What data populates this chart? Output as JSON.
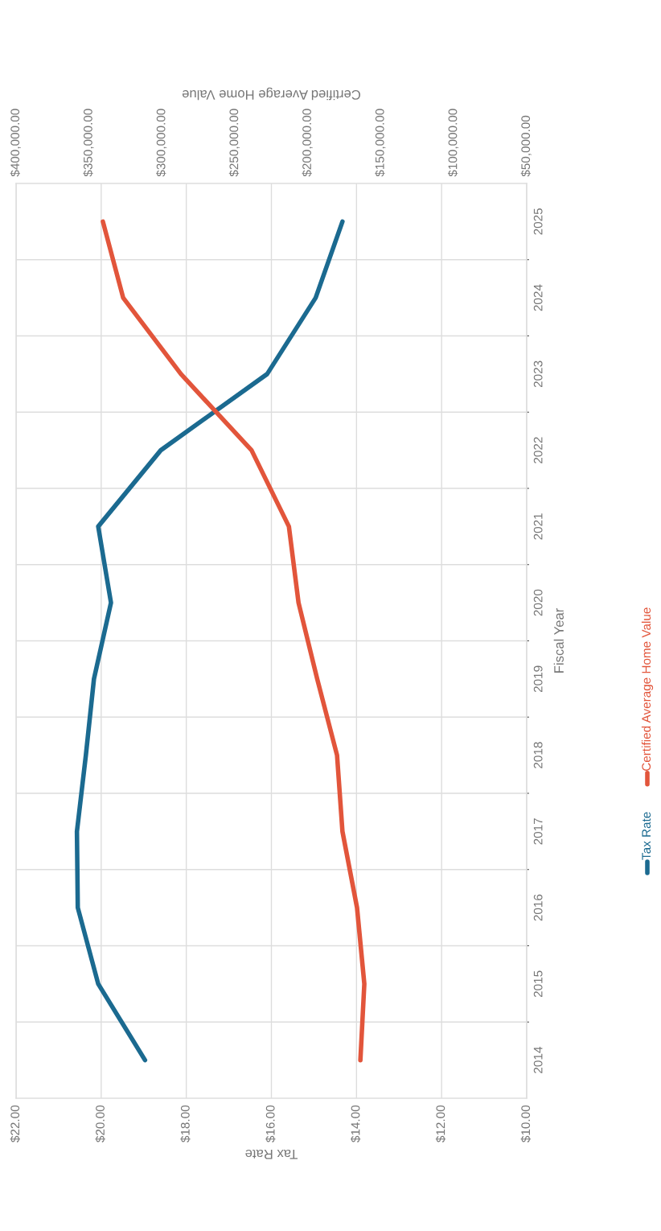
{
  "chart_data": {
    "type": "line",
    "orientation": "horizontal",
    "xlabel": "Tax Rate",
    "x2label": "Certified Average Home Value",
    "ylabel": "Fiscal Year",
    "categories": [
      "2025",
      "2024",
      "2023",
      "2022",
      "2021",
      "2020",
      "2019",
      "2018",
      "2017",
      "2016",
      "2015",
      "2014"
    ],
    "series": [
      {
        "name": "Tax Rate",
        "color": "#1b6a90",
        "values": [
          14.33,
          14.96,
          16.1,
          18.6,
          20.07,
          19.77,
          20.17,
          20.36,
          20.57,
          20.55,
          20.07,
          18.97
        ]
      },
      {
        "name": "Certified Average Home Value",
        "color": "#e2553b",
        "axis": "x2",
        "values": [
          340500,
          326600,
          287000,
          238600,
          213000,
          206400,
          193600,
          180000,
          176300,
          166300,
          161300,
          164000
        ]
      }
    ],
    "xlim": [
      22,
      10
    ],
    "xticks": [
      {
        "value": 22,
        "label": "$22.00"
      },
      {
        "value": 20,
        "label": "$20.00"
      },
      {
        "value": 18,
        "label": "$18.00"
      },
      {
        "value": 16,
        "label": "$16.00"
      },
      {
        "value": 14,
        "label": "$14.00"
      },
      {
        "value": 12,
        "label": "$12.00"
      },
      {
        "value": 10,
        "label": "$10.00"
      }
    ],
    "x2lim": [
      400000,
      50000
    ],
    "x2ticks": [
      {
        "value": 400000,
        "label": "$400,000.00"
      },
      {
        "value": 350000,
        "label": "$350,000.00"
      },
      {
        "value": 300000,
        "label": "$300,000.00"
      },
      {
        "value": 250000,
        "label": "$250,000.00"
      },
      {
        "value": 200000,
        "label": "$200,000.00"
      },
      {
        "value": 150000,
        "label": "$150,000.00"
      },
      {
        "value": 100000,
        "label": "$100,000.00"
      },
      {
        "value": 50000,
        "label": "$50,000.00"
      }
    ],
    "grid": true,
    "legend": "right",
    "marker": "none",
    "line_style": "solid"
  }
}
